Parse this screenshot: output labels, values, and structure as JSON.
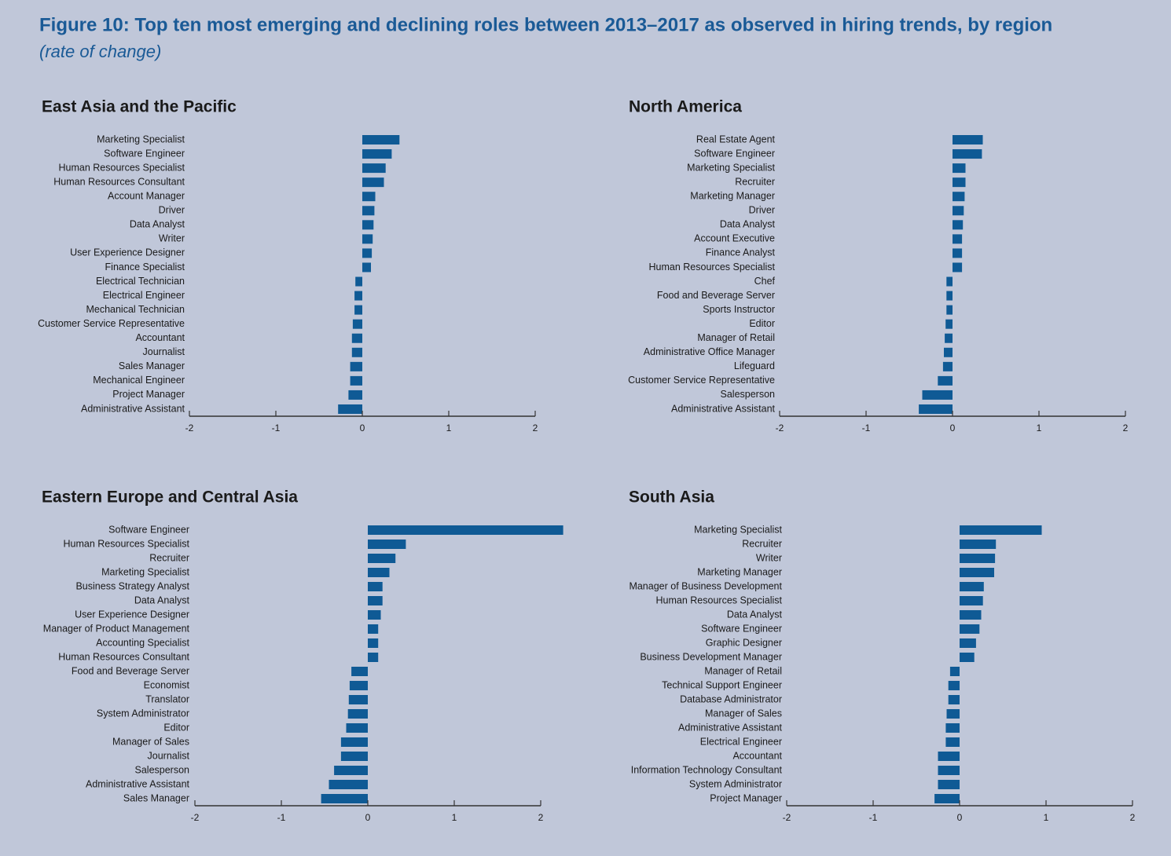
{
  "title": "Figure 10: Top ten most emerging and declining roles between 2013–2017 as observed in hiring trends, by region",
  "subtitle": "(rate of change)",
  "chart_data": [
    {
      "type": "bar",
      "orientation": "horizontal",
      "title": "East Asia and the Pacific",
      "color": "#0f5a95",
      "categories": [
        "Marketing Specialist",
        "Software Engineer",
        "Human Resources Specialist",
        "Human Resources Consultant",
        "Account Manager",
        "Driver",
        "Data Analyst",
        "Writer",
        "User Experience Designer",
        "Finance Specialist",
        "Electrical Technician",
        "Electrical Engineer",
        "Mechanical Technician",
        "Customer Service Representative",
        "Accountant",
        "Journalist",
        "Sales Manager",
        "Mechanical Engineer",
        "Project Manager",
        "Administrative Assistant"
      ],
      "values": [
        0.43,
        0.34,
        0.27,
        0.25,
        0.15,
        0.14,
        0.13,
        0.12,
        0.11,
        0.1,
        -0.08,
        -0.09,
        -0.09,
        -0.11,
        -0.12,
        -0.12,
        -0.14,
        -0.14,
        -0.16,
        -0.28
      ],
      "xlim": [
        -2,
        2
      ],
      "xticks": [
        -2,
        -1,
        0,
        1,
        2
      ]
    },
    {
      "type": "bar",
      "orientation": "horizontal",
      "title": "North America",
      "color": "#0f5a95",
      "categories": [
        "Real Estate Agent",
        "Software Engineer",
        "Marketing Specialist",
        "Recruiter",
        "Marketing Manager",
        "Driver",
        "Data Analyst",
        "Account Executive",
        "Finance Analyst",
        "Human Resources Specialist",
        "Chef",
        "Food and Beverage Server",
        "Sports Instructor",
        "Editor",
        "Manager of Retail",
        "Administrative Office Manager",
        "Lifeguard",
        "Customer Service Representative",
        "Salesperson",
        "Administrative Assistant"
      ],
      "values": [
        0.35,
        0.34,
        0.15,
        0.15,
        0.14,
        0.13,
        0.12,
        0.11,
        0.11,
        0.11,
        -0.07,
        -0.07,
        -0.07,
        -0.08,
        -0.09,
        -0.1,
        -0.11,
        -0.17,
        -0.35,
        -0.39
      ],
      "xlim": [
        -2,
        2
      ],
      "xticks": [
        -2,
        -1,
        0,
        1,
        2
      ]
    },
    {
      "type": "bar",
      "orientation": "horizontal",
      "title": "Eastern Europe and Central Asia",
      "color": "#0f5a95",
      "categories": [
        "Software Engineer",
        "Human Resources Specialist",
        "Recruiter",
        "Marketing Specialist",
        "Business Strategy Analyst",
        "Data Analyst",
        "User Experience Designer",
        "Manager of Product Management",
        "Accounting Specialist",
        "Human Resources Consultant",
        "Food and Beverage Server",
        "Economist",
        "Translator",
        "System Administrator",
        "Editor",
        "Manager of Sales",
        "Journalist",
        "Salesperson",
        "Administrative Assistant",
        "Sales Manager"
      ],
      "values": [
        2.26,
        0.44,
        0.32,
        0.25,
        0.17,
        0.17,
        0.15,
        0.12,
        0.12,
        0.12,
        -0.19,
        -0.21,
        -0.22,
        -0.23,
        -0.25,
        -0.31,
        -0.31,
        -0.39,
        -0.45,
        -0.54
      ],
      "xlim": [
        -2,
        2
      ],
      "xticks": [
        -2,
        -1,
        0,
        1,
        2
      ]
    },
    {
      "type": "bar",
      "orientation": "horizontal",
      "title": "South Asia",
      "color": "#0f5a95",
      "categories": [
        "Marketing Specialist",
        "Recruiter",
        "Writer",
        "Marketing Manager",
        "Manager of Business Development",
        "Human Resources Specialist",
        "Data Analyst",
        "Software Engineer",
        "Graphic Designer",
        "Business Development Manager",
        "Manager of Retail",
        "Technical Support Engineer",
        "Database Administrator",
        "Manager of Sales",
        "Administrative Assistant",
        "Electrical Engineer",
        "Accountant",
        "Information Technology Consultant",
        "System Administrator",
        "Project Manager"
      ],
      "values": [
        0.95,
        0.42,
        0.41,
        0.4,
        0.28,
        0.27,
        0.25,
        0.23,
        0.19,
        0.17,
        -0.11,
        -0.13,
        -0.13,
        -0.15,
        -0.16,
        -0.16,
        -0.25,
        -0.25,
        -0.25,
        -0.29
      ],
      "xlim": [
        -2,
        2
      ],
      "xticks": [
        -2,
        -1,
        0,
        1,
        2
      ]
    }
  ]
}
